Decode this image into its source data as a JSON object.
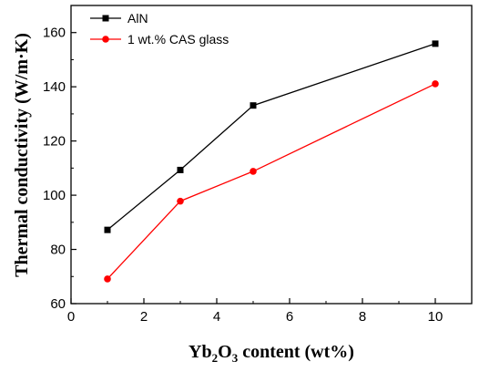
{
  "chart_data": {
    "type": "line",
    "x": [
      1,
      3,
      5,
      10
    ],
    "series": [
      {
        "name": "AlN",
        "values": [
          87.2,
          109.3,
          133.1,
          155.9
        ],
        "color": "#000000",
        "marker": "square"
      },
      {
        "name": "1 wt.% CAS glass",
        "values": [
          69.1,
          97.8,
          108.8,
          141.1
        ],
        "color": "#ff0000",
        "marker": "circle"
      }
    ],
    "xlabel": {
      "base1": "Yb",
      "sub1": "2",
      "base2": "O",
      "sub2": "3",
      "rest": " content (wt%)"
    },
    "ylabel": "Thermal conductivity (W/m·K)",
    "xlim": [
      0,
      11
    ],
    "ylim": [
      60,
      170
    ],
    "xticks": [
      0,
      2,
      4,
      6,
      8,
      10
    ],
    "yticks": [
      60,
      80,
      100,
      120,
      140,
      160
    ],
    "xtick_labels": [
      "0",
      "2",
      "4",
      "6",
      "8",
      "10"
    ],
    "ytick_labels": [
      "60",
      "80",
      "100",
      "120",
      "140",
      "160"
    ],
    "legend_position": "top-left",
    "grid": false
  }
}
